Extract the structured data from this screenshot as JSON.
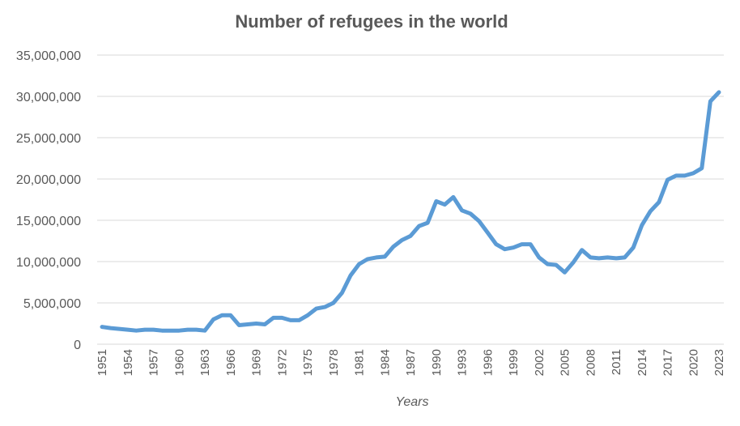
{
  "chart_data": {
    "type": "line",
    "title": "Number of refugees in the world",
    "xlabel": "Years",
    "ylabel": "",
    "ylim": [
      0,
      35000000
    ],
    "yticks": [
      0,
      5000000,
      10000000,
      15000000,
      20000000,
      25000000,
      30000000,
      35000000
    ],
    "ytick_labels": [
      "0",
      "5,000,000",
      "10,000,000",
      "15,000,000",
      "20,000,000",
      "25,000,000",
      "30,000,000",
      "35,000,000"
    ],
    "xticks": [
      "1951",
      "1954",
      "1957",
      "1960",
      "1963",
      "1966",
      "1969",
      "1972",
      "1975",
      "1978",
      "1981",
      "1984",
      "1987",
      "1990",
      "1993",
      "1996",
      "1999",
      "2002",
      "2005",
      "2008",
      "2011",
      "2014",
      "2017",
      "2020",
      "2023"
    ],
    "grid": true,
    "legend": "none",
    "line_color": "#5B9BD5",
    "series": [
      {
        "x": [
          1951,
          1952,
          1953,
          1954,
          1955,
          1956,
          1957,
          1958,
          1959,
          1960,
          1961,
          1962,
          1963,
          1964,
          1965,
          1966,
          1967,
          1968,
          1969,
          1970,
          1971,
          1972,
          1973,
          1974,
          1975,
          1976,
          1977,
          1978,
          1979,
          1980,
          1981,
          1982,
          1983,
          1984,
          1985,
          1986,
          1987,
          1988,
          1989,
          1990,
          1991,
          1992,
          1993,
          1994,
          1995,
          1996,
          1997,
          1998,
          1999,
          2000,
          2001,
          2002,
          2003,
          2004,
          2005,
          2006,
          2007,
          2008,
          2009,
          2010,
          2011,
          2012,
          2013,
          2014,
          2015,
          2016,
          2017,
          2018,
          2019,
          2020,
          2021,
          2022,
          2023
        ],
        "values": [
          2100000,
          1950000,
          1850000,
          1750000,
          1650000,
          1750000,
          1750000,
          1650000,
          1650000,
          1650000,
          1750000,
          1750000,
          1650000,
          3000000,
          3500000,
          3500000,
          2300000,
          2400000,
          2500000,
          2400000,
          3200000,
          3200000,
          2900000,
          2900000,
          3500000,
          4300000,
          4500000,
          5000000,
          6200000,
          8300000,
          9700000,
          10300000,
          10500000,
          10600000,
          11800000,
          12600000,
          13100000,
          14300000,
          14700000,
          17300000,
          16900000,
          17800000,
          16200000,
          15800000,
          14900000,
          13500000,
          12100000,
          11500000,
          11700000,
          12100000,
          12100000,
          10500000,
          9700000,
          9600000,
          8700000,
          9900000,
          11400000,
          10500000,
          10400000,
          10500000,
          10400000,
          10500000,
          11700000,
          14400000,
          16100000,
          17200000,
          19900000,
          20400000,
          20400000,
          20700000,
          21300000,
          29400000,
          30500000
        ]
      }
    ]
  }
}
